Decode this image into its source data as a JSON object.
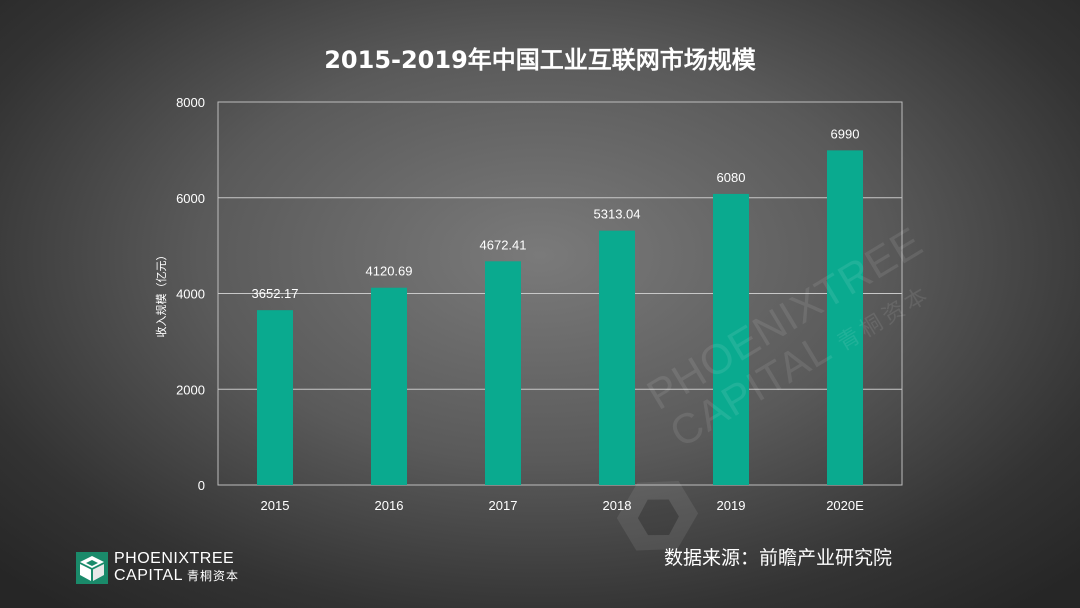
{
  "chart_data": {
    "type": "bar",
    "title": "2015-2019年中国工业互联网市场规模",
    "ylabel": "收入规模（亿元）",
    "xlabel": "",
    "categories": [
      "2015",
      "2016",
      "2017",
      "2018",
      "2019",
      "2020E"
    ],
    "values": [
      3652.17,
      4120.69,
      4672.41,
      5313.04,
      6080,
      6990
    ],
    "value_labels": [
      "3652.17",
      "4120.69",
      "4672.41",
      "5313.04",
      "6080",
      "6990"
    ],
    "ylim": [
      0,
      8000
    ],
    "yticks": [
      "0",
      "2000",
      "4000",
      "6000",
      "8000"
    ],
    "grid": true,
    "bar_color": "#0aaa8f"
  },
  "source": "数据来源：前瞻产业研究院",
  "logo": {
    "line1": "PHOENIXTREE",
    "line2": "CAPITAL",
    "cn": "青桐资本",
    "mark_color": "#1a8a6a"
  },
  "watermark": {
    "line1": "PHOENIXTREE",
    "line2": "CAPITAL",
    "cn": "青桐资本"
  }
}
